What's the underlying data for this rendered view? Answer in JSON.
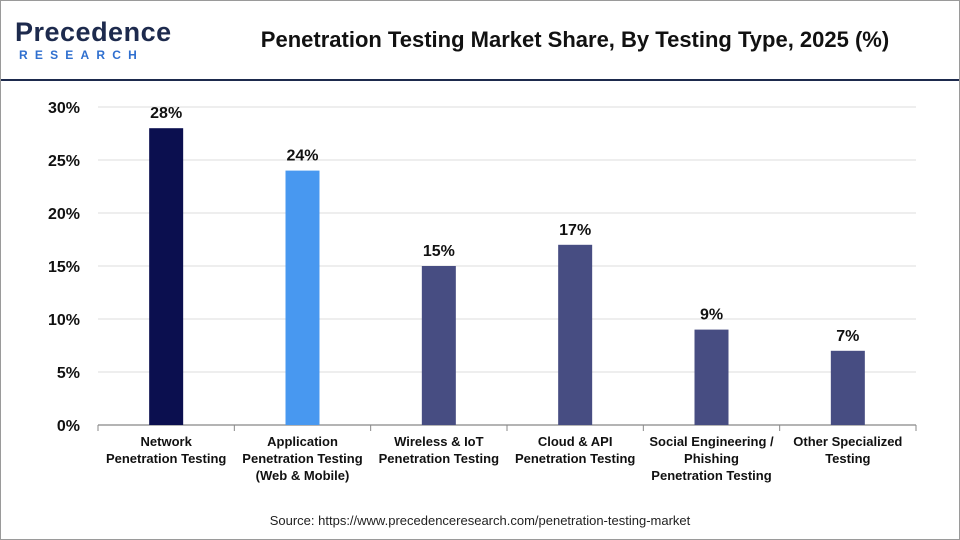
{
  "logo": {
    "word": "Precedence",
    "sub": "RESEARCH"
  },
  "title": "Penetration Testing Market Share, By Testing Type, 2025 (%)",
  "source": "Source: https://www.precedenceresearch.com/penetration-testing-market",
  "colors": {
    "network": "#0b0f4f",
    "application": "#4898f0",
    "others": "#474d82",
    "header_rule": "#1d2a4d",
    "grid": "#dcdcdc"
  },
  "chart_data": {
    "type": "bar",
    "categories": [
      [
        "Network",
        "Penetration Testing"
      ],
      [
        "Application",
        "Penetration Testing",
        "(Web & Mobile)"
      ],
      [
        "Wireless & IoT",
        "Penetration Testing"
      ],
      [
        "Cloud & API",
        "Penetration Testing"
      ],
      [
        "Social Engineering /",
        "Phishing",
        "Penetration Testing"
      ],
      [
        "Other Specialized",
        "Testing"
      ]
    ],
    "values": [
      28,
      24,
      15,
      17,
      9,
      7
    ],
    "data_labels": [
      "28%",
      "24%",
      "15%",
      "17%",
      "9%",
      "7%"
    ],
    "bar_colors": [
      "#0b0f4f",
      "#4898f0",
      "#474d82",
      "#474d82",
      "#474d82",
      "#474d82"
    ],
    "y_ticks": [
      0,
      5,
      10,
      15,
      20,
      25,
      30
    ],
    "y_tick_labels": [
      "0%",
      "5%",
      "10%",
      "15%",
      "20%",
      "25%",
      "30%"
    ],
    "ylim": [
      0,
      30
    ],
    "grid": true,
    "legend": "none"
  }
}
